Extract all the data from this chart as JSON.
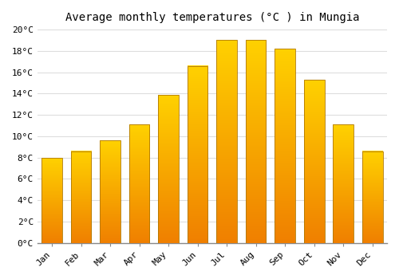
{
  "title": "Average monthly temperatures (°C ) in Mungia",
  "months": [
    "Jan",
    "Feb",
    "Mar",
    "Apr",
    "May",
    "Jun",
    "Jul",
    "Aug",
    "Sep",
    "Oct",
    "Nov",
    "Dec"
  ],
  "temperatures": [
    8.0,
    8.6,
    9.6,
    11.1,
    13.9,
    16.6,
    19.0,
    19.0,
    18.2,
    15.3,
    11.1,
    8.6
  ],
  "bar_color_top": "#FFD000",
  "bar_color_bottom": "#F08000",
  "bar_edge_color": "#B07800",
  "ylim": [
    0,
    20
  ],
  "yticks": [
    0,
    2,
    4,
    6,
    8,
    10,
    12,
    14,
    16,
    18,
    20
  ],
  "ytick_labels": [
    "0°C",
    "2°C",
    "4°C",
    "6°C",
    "8°C",
    "10°C",
    "12°C",
    "14°C",
    "16°C",
    "18°C",
    "20°C"
  ],
  "background_color": "#FFFFFF",
  "grid_color": "#DDDDDD",
  "title_fontsize": 10,
  "tick_fontsize": 8,
  "bar_width": 0.7
}
